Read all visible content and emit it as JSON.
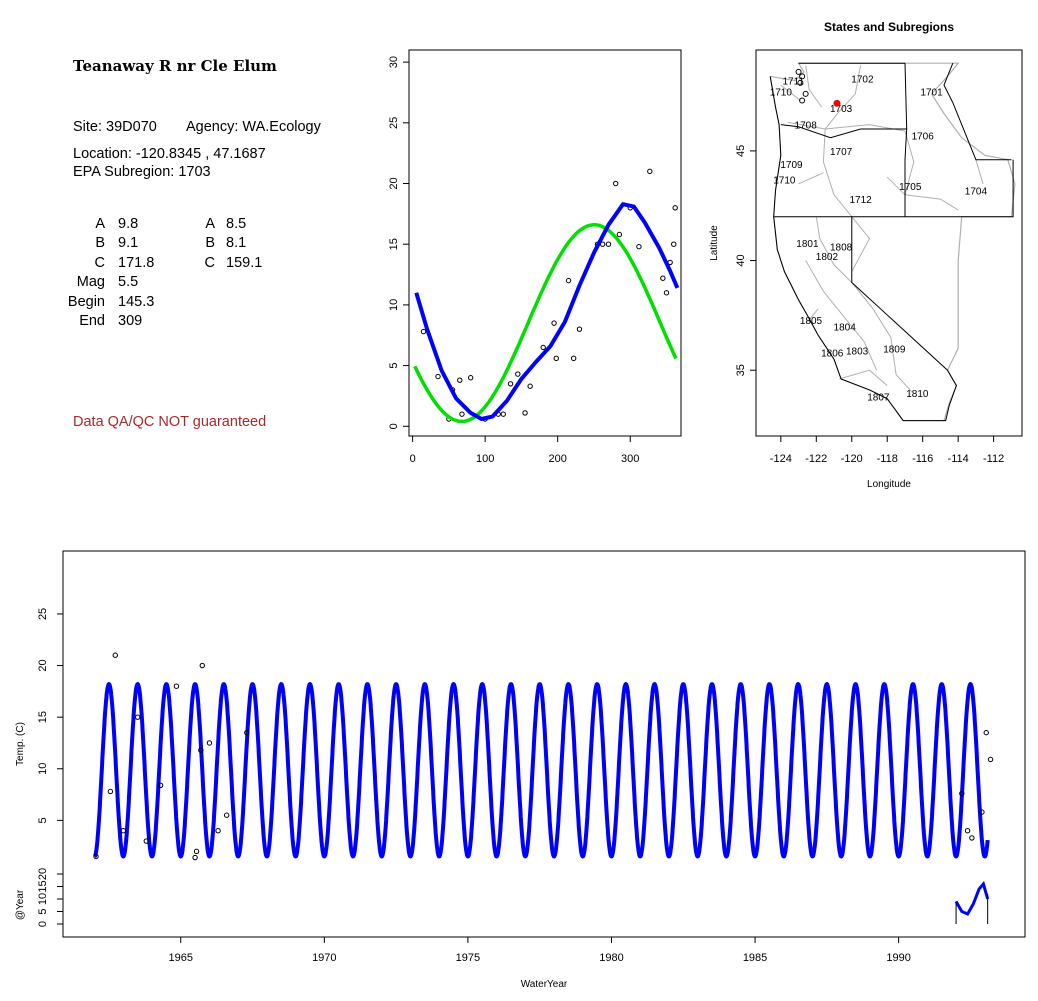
{
  "info": {
    "title": "Teanaway R nr Cle Elum",
    "site_label": "Site: 39D070",
    "agency_label": "Agency: WA.Ecology",
    "location_label": "Location: -120.8345 , 47.1687",
    "subregion_label": "EPA Subregion: 1703",
    "params_left": [
      {
        "label": "A",
        "value": "9.8"
      },
      {
        "label": "B",
        "value": "9.1"
      },
      {
        "label": "C",
        "value": "171.8"
      },
      {
        "label": "Mag",
        "value": "5.5"
      },
      {
        "label": "Begin",
        "value": "145.3"
      },
      {
        "label": "End",
        "value": "309"
      }
    ],
    "params_right": [
      {
        "label": "A",
        "value": "8.5"
      },
      {
        "label": "B",
        "value": "8.1"
      },
      {
        "label": "C",
        "value": "159.1"
      }
    ],
    "disclaimer": "Data QA/QC NOT guaranteed"
  },
  "colors": {
    "fit_green": "#00e000",
    "fit_blue": "#0000ff",
    "site_marker": "#ff0000",
    "disclaimer": "#a52a2a",
    "boundary_gray": "#b0b0b0"
  },
  "chart_data": [
    {
      "type": "scatter",
      "title": "",
      "xlabel": "",
      "ylabel": "",
      "xlim": [
        -5,
        370
      ],
      "ylim": [
        -0.8,
        31
      ],
      "xticks": [
        0,
        100,
        200,
        300
      ],
      "yticks": [
        0,
        5,
        10,
        15,
        20,
        25,
        30
      ],
      "points": [
        [
          15,
          7.8
        ],
        [
          35,
          4.1
        ],
        [
          50,
          0.6
        ],
        [
          55,
          3
        ],
        [
          65,
          3.8
        ],
        [
          68,
          1
        ],
        [
          80,
          4
        ],
        [
          100,
          0.6
        ],
        [
          118,
          1
        ],
        [
          125,
          1
        ],
        [
          135,
          3.5
        ],
        [
          145,
          4.3
        ],
        [
          155,
          1.1
        ],
        [
          162,
          3.3
        ],
        [
          180,
          6.5
        ],
        [
          195,
          8.5
        ],
        [
          198,
          5.6
        ],
        [
          215,
          12
        ],
        [
          222,
          5.6
        ],
        [
          230,
          8
        ],
        [
          255,
          15
        ],
        [
          262,
          15
        ],
        [
          270,
          15
        ],
        [
          280,
          20
        ],
        [
          285,
          15.8
        ],
        [
          300,
          18
        ],
        [
          312,
          14.8
        ],
        [
          327,
          21
        ],
        [
          345,
          12.2
        ],
        [
          350,
          11
        ],
        [
          355,
          13.5
        ],
        [
          360,
          15
        ],
        [
          362,
          18
        ]
      ],
      "series": [
        {
          "name": "",
          "color": "green",
          "curve": "sinusoid",
          "A": 8.5,
          "B": 8.1,
          "C": 159.1
        },
        {
          "name": "",
          "color": "blue",
          "curve": "smoothed",
          "points": [
            [
              5,
              11
            ],
            [
              20,
              8
            ],
            [
              40,
              4.6
            ],
            [
              60,
              2.3
            ],
            [
              80,
              1.1
            ],
            [
              95,
              0.6
            ],
            [
              110,
              0.8
            ],
            [
              130,
              2.1
            ],
            [
              150,
              3.9
            ],
            [
              170,
              5.3
            ],
            [
              190,
              6.6
            ],
            [
              210,
              8.6
            ],
            [
              230,
              11.6
            ],
            [
              250,
              14.3
            ],
            [
              270,
              16.6
            ],
            [
              290,
              18.3
            ],
            [
              305,
              18.1
            ],
            [
              320,
              16.8
            ],
            [
              340,
              14.7
            ],
            [
              355,
              12.8
            ],
            [
              365,
              11.4
            ]
          ]
        }
      ]
    },
    {
      "type": "map",
      "title": "States and Subregions",
      "xlabel": "Longitude",
      "ylabel": "Latitude",
      "xlim": [
        -125.4,
        -110.4
      ],
      "ylim": [
        32.0,
        49.6
      ],
      "xticks": [
        -124,
        -122,
        -120,
        -118,
        -116,
        -114,
        -112
      ],
      "yticks": [
        35,
        40,
        45
      ],
      "site": {
        "lon": -120.8345,
        "lat": 47.1687
      },
      "region_labels": [
        {
          "text": "1702",
          "lon": -119.4,
          "lat": 48.3
        },
        {
          "text": "1701",
          "lon": -115.5,
          "lat": 47.7
        },
        {
          "text": "1711",
          "lon": -123.3,
          "lat": 48.2
        },
        {
          "text": "1710",
          "lon": -124.0,
          "lat": 47.7
        },
        {
          "text": "1703",
          "lon": -120.6,
          "lat": 46.95
        },
        {
          "text": "1708",
          "lon": -122.6,
          "lat": 46.2
        },
        {
          "text": "1706",
          "lon": -116.0,
          "lat": 45.7
        },
        {
          "text": "1707",
          "lon": -120.6,
          "lat": 45.0
        },
        {
          "text": "1709",
          "lon": -123.4,
          "lat": 44.4
        },
        {
          "text": "1710",
          "lon": -123.8,
          "lat": 43.7
        },
        {
          "text": "1705",
          "lon": -116.7,
          "lat": 43.4
        },
        {
          "text": "1704",
          "lon": -113.0,
          "lat": 43.2
        },
        {
          "text": "1712",
          "lon": -119.5,
          "lat": 42.8
        },
        {
          "text": "1801",
          "lon": -122.5,
          "lat": 40.8
        },
        {
          "text": "1808",
          "lon": -120.6,
          "lat": 40.65
        },
        {
          "text": "1802",
          "lon": -121.4,
          "lat": 40.2
        },
        {
          "text": "1805",
          "lon": -122.3,
          "lat": 37.3
        },
        {
          "text": "1804",
          "lon": -120.4,
          "lat": 37.0
        },
        {
          "text": "1806",
          "lon": -121.1,
          "lat": 35.8
        },
        {
          "text": "1803",
          "lon": -119.7,
          "lat": 35.9
        },
        {
          "text": "1809",
          "lon": -117.6,
          "lat": 36.0
        },
        {
          "text": "1807",
          "lon": -118.5,
          "lat": 33.8
        },
        {
          "text": "1810",
          "lon": -116.3,
          "lat": 33.95
        }
      ]
    },
    {
      "type": "line",
      "title": "",
      "xlabel": "WaterYear",
      "ylabel": "Temp. (C)",
      "ylabel2": "@Year",
      "xlim": [
        1960.9,
        1994.4
      ],
      "ylim": [
        0,
        31
      ],
      "xticks": [
        1965,
        1970,
        1975,
        1980,
        1985,
        1990
      ],
      "yticks": [
        5,
        10,
        15,
        20,
        25
      ],
      "yticks2": [
        0,
        5,
        10,
        15,
        20
      ],
      "fit_start": 1962.0,
      "fit_end": 1993.1,
      "fit_period_years": 1.0,
      "fit_min": 1.5,
      "fit_max": 18.2,
      "points": [
        [
          1962.05,
          1.5
        ],
        [
          1962.55,
          7.8
        ],
        [
          1962.72,
          21
        ],
        [
          1963.0,
          4
        ],
        [
          1963.5,
          15
        ],
        [
          1963.8,
          3
        ],
        [
          1964.3,
          8.4
        ],
        [
          1964.85,
          18
        ],
        [
          1965.5,
          1.4
        ],
        [
          1965.55,
          2
        ],
        [
          1965.7,
          11.8
        ],
        [
          1965.75,
          20
        ],
        [
          1966.0,
          12.5
        ],
        [
          1966.3,
          4
        ],
        [
          1966.6,
          5.5
        ],
        [
          1967.3,
          13.5
        ],
        [
          1992.2,
          7.6
        ],
        [
          1992.4,
          4
        ],
        [
          1992.55,
          3.3
        ],
        [
          1992.9,
          5.8
        ],
        [
          1993.05,
          13.5
        ],
        [
          1993.2,
          10.9
        ]
      ],
      "inset_points": [
        [
          1992.0,
          9
        ],
        [
          1992.2,
          5
        ],
        [
          1992.4,
          4
        ],
        [
          1992.6,
          8
        ],
        [
          1992.8,
          14
        ],
        [
          1992.95,
          16
        ],
        [
          1993.1,
          10
        ]
      ]
    }
  ]
}
